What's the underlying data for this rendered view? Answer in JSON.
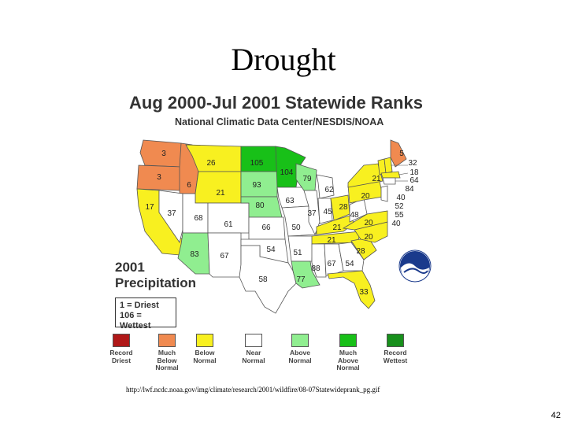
{
  "slide": {
    "title": "Drought",
    "page_number": "42",
    "source_url": "http://lwf.ncdc.noaa.gov/img/climate/research/2001/wildfire/08-07Statewideprank_pg.gif"
  },
  "map": {
    "title": "Aug 2000-Jul 2001 Statewide Ranks",
    "subtitle": "National Climatic Data Center/NESDIS/NOAA",
    "year_label_line1": "2001",
    "year_label_line2": "Precipitation",
    "key_line1": "1 = Driest",
    "key_line2": "106 = Wettest",
    "colors": {
      "record_driest": "#b01818",
      "much_below": "#f08a50",
      "below": "#f8f020",
      "near": "#ffffff",
      "above": "#90ee90",
      "much_above": "#18c018",
      "record_wettest": "#18901c"
    },
    "legend": [
      {
        "key": "record_driest",
        "line1": "Record",
        "line2": "Driest",
        "line3": ""
      },
      {
        "key": "much_below",
        "line1": "Much",
        "line2": "Below",
        "line3": "Normal"
      },
      {
        "key": "below",
        "line1": "Below",
        "line2": "Normal",
        "line3": ""
      },
      {
        "key": "near",
        "line1": "Near",
        "line2": "Normal",
        "line3": ""
      },
      {
        "key": "above",
        "line1": "Above",
        "line2": "Normal",
        "line3": ""
      },
      {
        "key": "much_above",
        "line1": "Much",
        "line2": "Above",
        "line3": "Normal"
      },
      {
        "key": "record_wettest",
        "line1": "Record",
        "line2": "Wettest",
        "line3": ""
      }
    ],
    "states": [
      {
        "id": "WA",
        "rank": "3",
        "category": "much_below"
      },
      {
        "id": "OR",
        "rank": "3",
        "category": "much_below"
      },
      {
        "id": "ID",
        "rank": "6",
        "category": "much_below"
      },
      {
        "id": "MT",
        "rank": "26",
        "category": "below"
      },
      {
        "id": "WY",
        "rank": "21",
        "category": "below"
      },
      {
        "id": "CA",
        "rank": "17",
        "category": "below"
      },
      {
        "id": "NV",
        "rank": "37",
        "category": "near"
      },
      {
        "id": "UT",
        "rank": "68",
        "category": "near"
      },
      {
        "id": "CO",
        "rank": "61",
        "category": "near"
      },
      {
        "id": "AZ",
        "rank": "83",
        "category": "above"
      },
      {
        "id": "NM",
        "rank": "67",
        "category": "near"
      },
      {
        "id": "ND",
        "rank": "105",
        "category": "much_above"
      },
      {
        "id": "SD",
        "rank": "93",
        "category": "above"
      },
      {
        "id": "NE",
        "rank": "80",
        "category": "above"
      },
      {
        "id": "KS",
        "rank": "66",
        "category": "near"
      },
      {
        "id": "OK",
        "rank": "54",
        "category": "near"
      },
      {
        "id": "TX",
        "rank": "58",
        "category": "near"
      },
      {
        "id": "MN",
        "rank": "104",
        "category": "much_above"
      },
      {
        "id": "IA",
        "rank": "63",
        "category": "near"
      },
      {
        "id": "MO",
        "rank": "50",
        "category": "near"
      },
      {
        "id": "AR",
        "rank": "51",
        "category": "near"
      },
      {
        "id": "LA",
        "rank": "77",
        "category": "above"
      },
      {
        "id": "WI",
        "rank": "79",
        "category": "above"
      },
      {
        "id": "IL",
        "rank": "37",
        "category": "near"
      },
      {
        "id": "MI",
        "rank": "62",
        "category": "near"
      },
      {
        "id": "IN",
        "rank": "45",
        "category": "near"
      },
      {
        "id": "OH",
        "rank": "28",
        "category": "below"
      },
      {
        "id": "KY",
        "rank": "21",
        "category": "below"
      },
      {
        "id": "TN",
        "rank": "21",
        "category": "below"
      },
      {
        "id": "MS",
        "rank": "88",
        "category": "near"
      },
      {
        "id": "AL",
        "rank": "67",
        "category": "near"
      },
      {
        "id": "GA",
        "rank": "54",
        "category": "near"
      },
      {
        "id": "FL",
        "rank": "33",
        "category": "below"
      },
      {
        "id": "SC",
        "rank": "28",
        "category": "below"
      },
      {
        "id": "NC",
        "rank": "20",
        "category": "below"
      },
      {
        "id": "VA",
        "rank": "20",
        "category": "below"
      },
      {
        "id": "WV",
        "rank": "48",
        "category": "near"
      },
      {
        "id": "PA",
        "rank": "20",
        "category": "below"
      },
      {
        "id": "NY",
        "rank": "21",
        "category": "below"
      },
      {
        "id": "ME",
        "rank": "5",
        "category": "much_below"
      },
      {
        "id": "NH",
        "rank": "32",
        "category": "below"
      },
      {
        "id": "VT",
        "rank": "",
        "category": "below"
      },
      {
        "id": "MA",
        "rank": "18",
        "category": "below"
      },
      {
        "id": "RI",
        "rank": "64",
        "category": "near"
      },
      {
        "id": "CT",
        "rank": "84",
        "category": "near"
      },
      {
        "id": "NJ",
        "rank": "40",
        "category": "near"
      },
      {
        "id": "DE",
        "rank": "52",
        "category": "near"
      },
      {
        "id": "MD",
        "rank": "55",
        "category": "near"
      },
      {
        "id": "DC_area",
        "rank": "40",
        "category": "near"
      }
    ]
  }
}
